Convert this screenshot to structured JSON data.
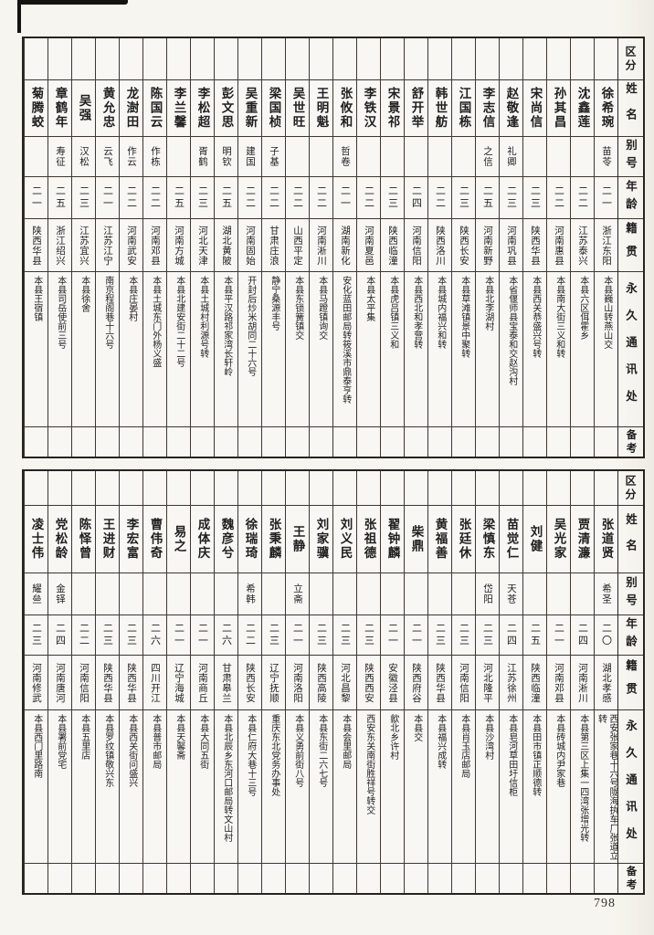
{
  "page": {
    "number": "798"
  },
  "colors": {
    "paper": "#f7f5ef",
    "ink": "#1f1f1f",
    "border": "#26241f"
  },
  "header_labels": {
    "qufen": "区分",
    "name": "姓名",
    "alias": "别号",
    "age": "年龄",
    "origin": "籍贯",
    "address": "永久通讯处",
    "remark": "备考"
  },
  "tables": [
    {
      "persons": [
        {
          "name": "徐希琬",
          "alias": "苗苓",
          "age": "二一",
          "origin": "浙江东阳",
          "address": "本县巍山转燕山交",
          "remark": ""
        },
        {
          "name": "沈鑫莲",
          "alias": "",
          "age": "二二",
          "origin": "江苏泰兴",
          "address": "本县六区佴霍乡",
          "remark": ""
        },
        {
          "name": "孙其昌",
          "alias": "",
          "age": "二二",
          "origin": "河南惠县",
          "address": "本县南大街三义和转",
          "remark": ""
        },
        {
          "name": "宋尚信",
          "alias": "",
          "age": "二三",
          "origin": "陕西华县",
          "address": "本县西关恭盛兴号转",
          "remark": ""
        },
        {
          "name": "赵敬逢",
          "alias": "礼卿",
          "age": "二三",
          "origin": "河南巩县",
          "address": "本省偃师县宝泰和交赵沟村",
          "remark": ""
        },
        {
          "name": "李志信",
          "alias": "之信",
          "age": "二五",
          "origin": "河南新野",
          "address": "本县北李湖村",
          "remark": ""
        },
        {
          "name": "江国栋",
          "alias": "",
          "age": "二三",
          "origin": "陕西长安",
          "address": "本县草滩镇景中聚转",
          "remark": ""
        },
        {
          "name": "韩世舫",
          "alias": "",
          "age": "二二",
          "origin": "陕西洛川",
          "address": "本县城内福兴和转",
          "remark": ""
        },
        {
          "name": "舒开举",
          "alias": "",
          "age": "二四",
          "origin": "河南信阳",
          "address": "本县西北和孝营转",
          "remark": ""
        },
        {
          "name": "宋景祁",
          "alias": "",
          "age": "二三",
          "origin": "陕西临潼",
          "address": "本县虎吕镇三义和",
          "remark": ""
        },
        {
          "name": "李铁汉",
          "alias": "",
          "age": "二二",
          "origin": "河南夏邑",
          "address": "本县太平集",
          "remark": ""
        },
        {
          "name": "张攸和",
          "alias": "哲卷",
          "age": "二一",
          "origin": "湖南新化",
          "address": "安化蓝田邮局转筱溪市鼎泰亨转",
          "remark": ""
        },
        {
          "name": "王明魁",
          "alias": "",
          "age": "二二",
          "origin": "河南淅川",
          "address": "本县马蹬镇询交",
          "remark": ""
        },
        {
          "name": "吴世旺",
          "alias": "",
          "age": "二二",
          "origin": "山西平定",
          "address": "本县东锁簧镇交",
          "remark": ""
        },
        {
          "name": "梁国桢",
          "alias": "子基",
          "age": "二二",
          "origin": "甘肃庄浪",
          "address": "静宁桑源丰号",
          "remark": ""
        },
        {
          "name": "吴重新",
          "alias": "建国",
          "age": "二二",
          "origin": "河南固始",
          "address": "开封后炒米胡同二十六号",
          "remark": ""
        },
        {
          "name": "彭文思",
          "alias": "明钦",
          "age": "二五",
          "origin": "湖北黄陂",
          "address": "本县平汉路祁家湾长轩岭",
          "remark": ""
        },
        {
          "name": "李松超",
          "alias": "胥鹤",
          "age": "二三",
          "origin": "河北天津",
          "address": "本县土城村利源号转",
          "remark": ""
        },
        {
          "name": "李兰馨",
          "alias": "",
          "age": "二五",
          "origin": "河南方城",
          "address": "本县北建安街二十二号",
          "remark": ""
        },
        {
          "name": "陈国云",
          "alias": "作栋",
          "age": "二二",
          "origin": "河南邓县",
          "address": "本县土城东门外杨义盛",
          "remark": ""
        },
        {
          "name": "龙澍田",
          "alias": "作云",
          "age": "二二",
          "origin": "河南武安",
          "address": "本县庄晏村",
          "remark": ""
        },
        {
          "name": "黄允忠",
          "alias": "云飞",
          "age": "二一",
          "origin": "江苏江宁",
          "address": "南京程阁巷十六号",
          "remark": ""
        },
        {
          "name": "吴强",
          "alias": "汉松",
          "age": "二三",
          "origin": "江苏宜兴",
          "address": "本县徐舍",
          "remark": ""
        },
        {
          "name": "章鹤年",
          "alias": "寿征",
          "age": "二五",
          "origin": "浙江绍兴",
          "address": "本县司岳使前三号",
          "remark": ""
        },
        {
          "name": "菊腾蛟",
          "alias": "",
          "age": "二一",
          "origin": "陕西华县",
          "address": "本县王宿镇",
          "remark": ""
        }
      ]
    },
    {
      "persons": [
        {
          "name": "张道贤",
          "alias": "希圣",
          "age": "二〇",
          "origin": "湖北孝感",
          "address": "西安张家巷十六号陇海执车厂张道立转",
          "remark": ""
        },
        {
          "name": "贾清濂",
          "alias": "",
          "age": "二四",
          "origin": "河南淅川",
          "address": "本县第三区上集一四湾张增光转",
          "remark": ""
        },
        {
          "name": "吴光家",
          "alias": "",
          "age": "二一",
          "origin": "河南邓县",
          "address": "本县砖城内尹家巷",
          "remark": ""
        },
        {
          "name": "刘健",
          "alias": "",
          "age": "二五",
          "origin": "陕西临潼",
          "address": "本县田市镇正顺德转",
          "remark": ""
        },
        {
          "name": "苗觉仁",
          "alias": "天苍",
          "age": "二四",
          "origin": "江苏徐州",
          "address": "本县皂河草田圩信柜",
          "remark": ""
        },
        {
          "name": "梁慎东",
          "alias": "岱阳",
          "age": "二三",
          "origin": "河北隆平",
          "address": "本县沙湾村",
          "remark": ""
        },
        {
          "name": "张廷休",
          "alias": "",
          "age": "二三",
          "origin": "河南信阳",
          "address": "本县肖玉店邮局",
          "remark": ""
        },
        {
          "name": "黄福善",
          "alias": "",
          "age": "二三",
          "origin": "陕西华县",
          "address": "本县福兴成转",
          "remark": ""
        },
        {
          "name": "柴鼎",
          "alias": "",
          "age": "二一",
          "origin": "陕西府谷",
          "address": "本县交",
          "remark": ""
        },
        {
          "name": "翟钟麟",
          "alias": "",
          "age": "二一",
          "origin": "安徽泾县",
          "address": "歙北乡许村",
          "remark": ""
        },
        {
          "name": "张祖德",
          "alias": "",
          "age": "二三",
          "origin": "陕西西安",
          "address": "西安东关南街胜祥号转交",
          "remark": ""
        },
        {
          "name": "刘义民",
          "alias": "",
          "age": "二三",
          "origin": "河北昌黎",
          "address": "本县会里邮局",
          "remark": ""
        },
        {
          "name": "刘家骥",
          "alias": "",
          "age": "二三",
          "origin": "陕西高陵",
          "address": "本县东街二六七号",
          "remark": ""
        },
        {
          "name": "王静",
          "alias": "立斋",
          "age": "二一",
          "origin": "河南洛阳",
          "address": "本县义勇前街八号",
          "remark": ""
        },
        {
          "name": "张秉麟",
          "alias": "",
          "age": "二三",
          "origin": "辽宁抚顺",
          "address": "重庆东北党务办事处",
          "remark": ""
        },
        {
          "name": "徐瑞琦",
          "alias": "希韩",
          "age": "二二",
          "origin": "陕西长安",
          "address": "本县仁府大巷十三号",
          "remark": ""
        },
        {
          "name": "魏彦兮",
          "alias": "",
          "age": "二六",
          "origin": "甘肃皋兰",
          "address": "本县北辰乡东河口邮局转文山村",
          "remark": ""
        },
        {
          "name": "成体庆",
          "alias": "",
          "age": "二一",
          "origin": "河南商丘",
          "address": "本县大同五街",
          "remark": ""
        },
        {
          "name": "易之",
          "alias": "",
          "age": "二一",
          "origin": "辽宁海城",
          "address": "本县天馨斋",
          "remark": ""
        },
        {
          "name": "曹伟奇",
          "alias": "",
          "age": "二六",
          "origin": "四川开江",
          "address": "本县普市邮局",
          "remark": ""
        },
        {
          "name": "李宏富",
          "alias": "",
          "age": "二三",
          "origin": "陕西华县",
          "address": "本县西关街问盛兴",
          "remark": ""
        },
        {
          "name": "王进财",
          "alias": "",
          "age": "二三",
          "origin": "陕西华县",
          "address": "本县罗纹镇敬兴东",
          "remark": ""
        },
        {
          "name": "陈怿曾",
          "alias": "",
          "age": "二二",
          "origin": "河南信阳",
          "address": "本县五里店",
          "remark": ""
        },
        {
          "name": "党松龄",
          "alias": "金铎",
          "age": "二四",
          "origin": "河南唐河",
          "address": "本县署前党宅",
          "remark": ""
        },
        {
          "name": "凌士伟",
          "alias": "耀亝",
          "age": "二三",
          "origin": "河南修武",
          "address": "本县西门里路南",
          "remark": ""
        }
      ]
    }
  ]
}
